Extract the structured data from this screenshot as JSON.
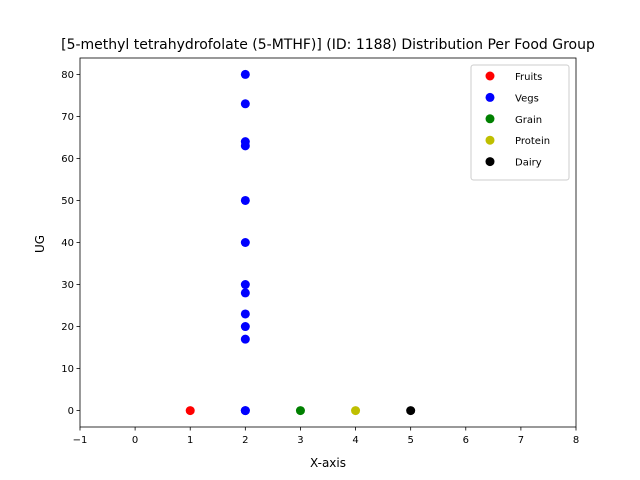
{
  "chart_data": {
    "type": "scatter",
    "title": "[5-methyl tetrahydrofolate (5-MTHF)] (ID: 1188) Distribution Per Food Group",
    "xlabel": "X-axis",
    "ylabel": "UG",
    "xlim": [
      -1,
      8
    ],
    "ylim": [
      -3.9,
      83.9
    ],
    "xticks": [
      "-1",
      "0",
      "1",
      "2",
      "3",
      "4",
      "5",
      "6",
      "7",
      "8"
    ],
    "yticks": [
      "0",
      "10",
      "20",
      "30",
      "40",
      "50",
      "60",
      "70",
      "80"
    ],
    "grid": false,
    "legend_position": "top-right",
    "series": [
      {
        "name": "Fruits",
        "color": "#ff0000",
        "x": [
          1
        ],
        "y": [
          0
        ]
      },
      {
        "name": "Vegs",
        "color": "#0000ff",
        "x": [
          2,
          2,
          2,
          2,
          2,
          2,
          2,
          2,
          2,
          2,
          2,
          2,
          2
        ],
        "y": [
          80,
          73,
          64,
          63,
          50,
          40,
          30,
          28,
          23,
          20,
          17,
          0,
          0
        ]
      },
      {
        "name": "Grain",
        "color": "#008000",
        "x": [
          3
        ],
        "y": [
          0
        ]
      },
      {
        "name": "Protein",
        "color": "#bfbf00",
        "x": [
          4
        ],
        "y": [
          0
        ]
      },
      {
        "name": "Dairy",
        "color": "#000000",
        "x": [
          5
        ],
        "y": [
          0
        ]
      }
    ]
  }
}
